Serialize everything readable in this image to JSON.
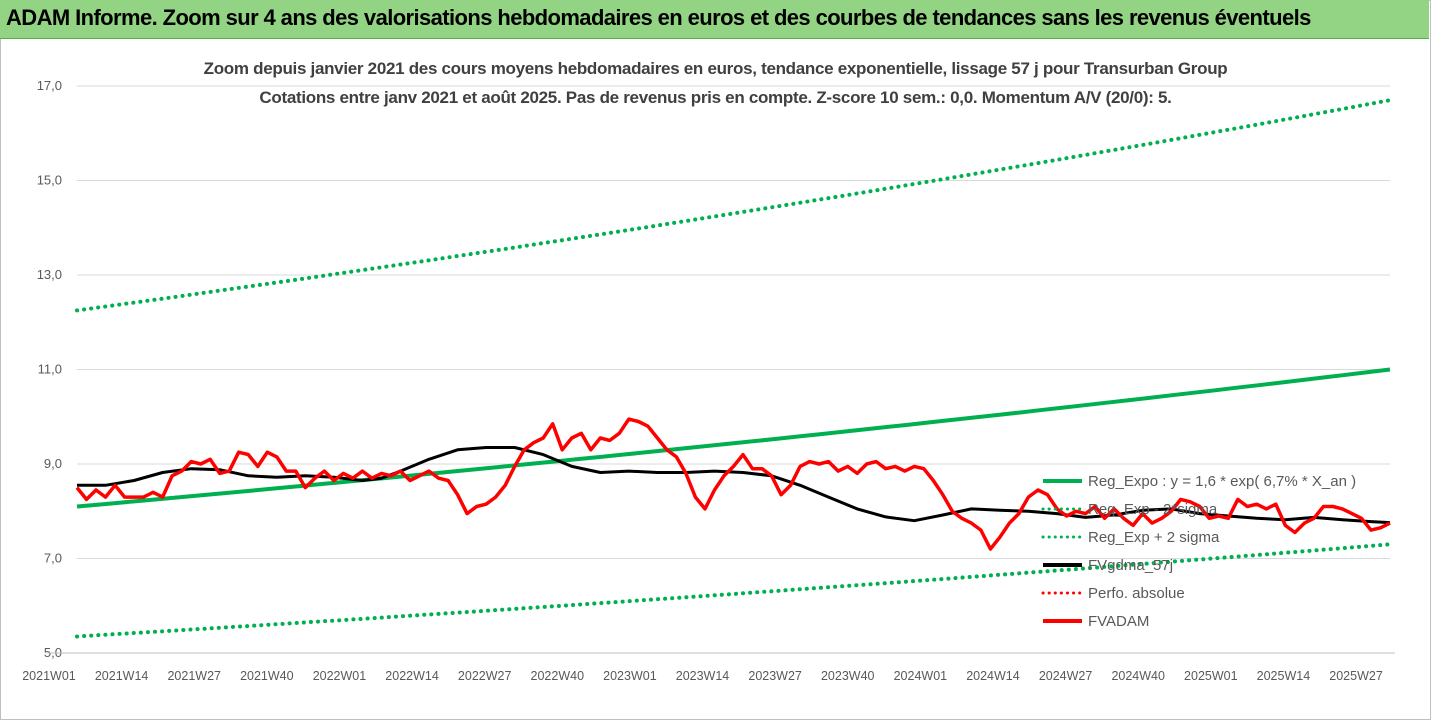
{
  "banner": {
    "title": "ADAM Informe. Zoom sur 4 ans des valorisations hebdomadaires en euros et des courbes de tendances sans les revenus éventuels"
  },
  "chart_data": {
    "type": "line",
    "title": "Zoom depuis janvier 2021 des cours moyens hebdomadaires en euros, tendance exponentielle, lissage 57 j pour Transurban Group",
    "subtitle": "Cotations entre janv 2021 et août 2025.  Pas de revenus pris en compte. Z-score 10 sem.: 0,0. Momentum A/V (20/0): 5.",
    "xlabel": "",
    "ylabel": "",
    "ylim": [
      5.0,
      17.0
    ],
    "yticks": [
      "5,0",
      "7,0",
      "9,0",
      "11,0",
      "13,0",
      "15,0",
      "17,0"
    ],
    "x_range_weeks": 239,
    "xticks": [
      "2021W01",
      "2021W14",
      "2021W27",
      "2021W40",
      "2022W01",
      "2022W14",
      "2022W27",
      "2022W40",
      "2023W01",
      "2023W14",
      "2023W27",
      "2023W40",
      "2024W01",
      "2024W14",
      "2024W27",
      "2024W40",
      "2025W01",
      "2025W14",
      "2025W27"
    ],
    "grid": "horizontal",
    "legend_position": "right",
    "series": [
      {
        "name": "Reg_Expo : y = 1,6 * exp( 6,7% *  X_an )",
        "color": "#00b050",
        "style": "solid",
        "start": 8.1,
        "end": 11.0
      },
      {
        "name": "Reg_Exp - 2*sigma",
        "color": "#00b050",
        "style": "dotted",
        "start": 5.35,
        "end": 7.3
      },
      {
        "name": "Reg_Exp + 2 sigma",
        "color": "#00b050",
        "style": "dotted",
        "start": 12.25,
        "end": 16.7
      },
      {
        "name": "FVgdma_57j",
        "color": "#000000",
        "style": "solid",
        "points": [
          [
            0,
            8.55
          ],
          [
            6,
            8.55
          ],
          [
            12,
            8.65
          ],
          [
            18,
            8.82
          ],
          [
            24,
            8.9
          ],
          [
            30,
            8.88
          ],
          [
            36,
            8.75
          ],
          [
            42,
            8.72
          ],
          [
            48,
            8.75
          ],
          [
            54,
            8.72
          ],
          [
            60,
            8.65
          ],
          [
            64,
            8.7
          ],
          [
            68,
            8.85
          ],
          [
            74,
            9.1
          ],
          [
            80,
            9.3
          ],
          [
            86,
            9.35
          ],
          [
            92,
            9.35
          ],
          [
            98,
            9.2
          ],
          [
            104,
            8.95
          ],
          [
            110,
            8.82
          ],
          [
            116,
            8.85
          ],
          [
            122,
            8.82
          ],
          [
            128,
            8.82
          ],
          [
            134,
            8.85
          ],
          [
            140,
            8.82
          ],
          [
            146,
            8.75
          ],
          [
            152,
            8.55
          ],
          [
            158,
            8.3
          ],
          [
            164,
            8.05
          ],
          [
            170,
            7.88
          ],
          [
            176,
            7.8
          ],
          [
            182,
            7.92
          ],
          [
            188,
            8.05
          ],
          [
            194,
            8.02
          ],
          [
            200,
            8.0
          ],
          [
            206,
            7.95
          ],
          [
            212,
            7.87
          ],
          [
            218,
            7.92
          ],
          [
            224,
            8.02
          ],
          [
            230,
            8.05
          ],
          [
            236,
            7.95
          ],
          [
            242,
            7.9
          ],
          [
            248,
            7.85
          ],
          [
            254,
            7.82
          ],
          [
            260,
            7.87
          ],
          [
            266,
            7.82
          ],
          [
            272,
            7.78
          ],
          [
            276,
            7.76
          ]
        ]
      },
      {
        "name": "Perfo. absolue",
        "color": "#ff0000",
        "style": "dotted",
        "points": []
      },
      {
        "name": "FVADAM",
        "color": "#ff0000",
        "style": "solid",
        "points": [
          [
            0,
            8.5
          ],
          [
            2,
            8.25
          ],
          [
            4,
            8.45
          ],
          [
            6,
            8.3
          ],
          [
            8,
            8.55
          ],
          [
            10,
            8.3
          ],
          [
            14,
            8.3
          ],
          [
            16,
            8.4
          ],
          [
            18,
            8.3
          ],
          [
            20,
            8.75
          ],
          [
            22,
            8.85
          ],
          [
            24,
            9.05
          ],
          [
            26,
            9.0
          ],
          [
            28,
            9.1
          ],
          [
            30,
            8.8
          ],
          [
            32,
            8.85
          ],
          [
            34,
            9.25
          ],
          [
            36,
            9.2
          ],
          [
            38,
            8.95
          ],
          [
            40,
            9.25
          ],
          [
            42,
            9.15
          ],
          [
            44,
            8.85
          ],
          [
            46,
            8.85
          ],
          [
            48,
            8.5
          ],
          [
            50,
            8.7
          ],
          [
            52,
            8.85
          ],
          [
            54,
            8.65
          ],
          [
            56,
            8.8
          ],
          [
            58,
            8.7
          ],
          [
            60,
            8.85
          ],
          [
            62,
            8.7
          ],
          [
            64,
            8.8
          ],
          [
            66,
            8.75
          ],
          [
            68,
            8.85
          ],
          [
            70,
            8.65
          ],
          [
            72,
            8.75
          ],
          [
            74,
            8.85
          ],
          [
            76,
            8.7
          ],
          [
            78,
            8.65
          ],
          [
            80,
            8.35
          ],
          [
            82,
            7.95
          ],
          [
            84,
            8.1
          ],
          [
            86,
            8.15
          ],
          [
            88,
            8.3
          ],
          [
            90,
            8.55
          ],
          [
            92,
            8.95
          ],
          [
            94,
            9.3
          ],
          [
            96,
            9.45
          ],
          [
            98,
            9.55
          ],
          [
            100,
            9.85
          ],
          [
            102,
            9.3
          ],
          [
            104,
            9.55
          ],
          [
            106,
            9.65
          ],
          [
            108,
            9.3
          ],
          [
            110,
            9.55
          ],
          [
            112,
            9.5
          ],
          [
            114,
            9.65
          ],
          [
            116,
            9.95
          ],
          [
            118,
            9.9
          ],
          [
            120,
            9.8
          ],
          [
            122,
            9.55
          ],
          [
            124,
            9.3
          ],
          [
            126,
            9.15
          ],
          [
            128,
            8.8
          ],
          [
            130,
            8.3
          ],
          [
            132,
            8.05
          ],
          [
            134,
            8.45
          ],
          [
            136,
            8.75
          ],
          [
            138,
            8.95
          ],
          [
            140,
            9.2
          ],
          [
            142,
            8.9
          ],
          [
            144,
            8.9
          ],
          [
            146,
            8.75
          ],
          [
            148,
            8.35
          ],
          [
            150,
            8.55
          ],
          [
            152,
            8.95
          ],
          [
            154,
            9.05
          ],
          [
            156,
            9.0
          ],
          [
            158,
            9.05
          ],
          [
            160,
            8.85
          ],
          [
            162,
            8.95
          ],
          [
            164,
            8.8
          ],
          [
            166,
            9.0
          ],
          [
            168,
            9.05
          ],
          [
            170,
            8.9
          ],
          [
            172,
            8.95
          ],
          [
            174,
            8.85
          ],
          [
            176,
            8.95
          ],
          [
            178,
            8.9
          ],
          [
            180,
            8.65
          ],
          [
            182,
            8.35
          ],
          [
            184,
            8.0
          ],
          [
            186,
            7.85
          ],
          [
            188,
            7.75
          ],
          [
            190,
            7.6
          ],
          [
            192,
            7.2
          ],
          [
            194,
            7.45
          ],
          [
            196,
            7.75
          ],
          [
            198,
            7.95
          ],
          [
            200,
            8.3
          ],
          [
            202,
            8.45
          ],
          [
            204,
            8.35
          ],
          [
            206,
            8.05
          ],
          [
            208,
            7.9
          ],
          [
            210,
            8.0
          ],
          [
            212,
            7.95
          ],
          [
            214,
            8.1
          ],
          [
            216,
            7.85
          ],
          [
            218,
            8.05
          ],
          [
            220,
            7.85
          ],
          [
            222,
            7.7
          ],
          [
            224,
            7.95
          ],
          [
            226,
            7.75
          ],
          [
            228,
            7.85
          ],
          [
            230,
            8.0
          ],
          [
            232,
            8.25
          ],
          [
            234,
            8.2
          ],
          [
            236,
            8.1
          ],
          [
            238,
            7.85
          ],
          [
            240,
            7.9
          ],
          [
            242,
            7.85
          ],
          [
            244,
            8.25
          ],
          [
            246,
            8.1
          ],
          [
            248,
            8.15
          ],
          [
            250,
            8.05
          ],
          [
            252,
            8.15
          ],
          [
            254,
            7.7
          ],
          [
            256,
            7.55
          ],
          [
            258,
            7.75
          ],
          [
            260,
            7.85
          ],
          [
            262,
            8.1
          ],
          [
            264,
            8.1
          ],
          [
            266,
            8.05
          ],
          [
            268,
            7.95
          ],
          [
            270,
            7.85
          ],
          [
            272,
            7.6
          ],
          [
            274,
            7.65
          ],
          [
            276,
            7.75
          ]
        ]
      }
    ]
  }
}
